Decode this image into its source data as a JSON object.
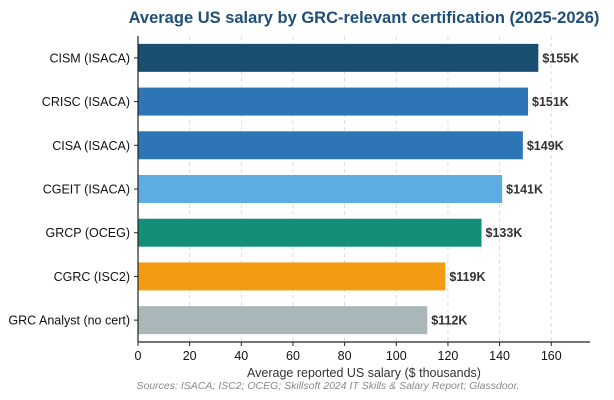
{
  "chart_data": {
    "type": "bar",
    "orientation": "horizontal",
    "title": "Average US salary by GRC-relevant certification (2025-2026)",
    "xlabel": "Average reported US salary ($ thousands)",
    "ylabel": "",
    "xlim": [
      0,
      175
    ],
    "xticks": [
      0,
      20,
      40,
      60,
      80,
      100,
      120,
      140,
      160
    ],
    "grid": "x-dashed",
    "categories": [
      "CISM (ISACA)",
      "CRISC (ISACA)",
      "CISA (ISACA)",
      "CGEIT (ISACA)",
      "GRCP (OCEG)",
      "CGRC (ISC2)",
      "GRC Analyst (no cert)"
    ],
    "values": [
      155,
      151,
      149,
      141,
      133,
      119,
      112
    ],
    "data_labels": [
      "$155K",
      "$151K",
      "$149K",
      "$141K",
      "$133K",
      "$119K",
      "$112K"
    ],
    "colors": [
      "#1b4f72",
      "#2e75b6",
      "#2e75b6",
      "#5dade2",
      "#148f77",
      "#f39c12",
      "#aab7b8"
    ],
    "source": "Sources: ISACA; ISC2; OCEG; Skillsoft 2024 IT Skills & Salary Report; Glassdoor."
  },
  "style": {
    "title_color": "#1f4e79",
    "axis_color": "#222222",
    "grid_color": "#d5d5d5"
  }
}
